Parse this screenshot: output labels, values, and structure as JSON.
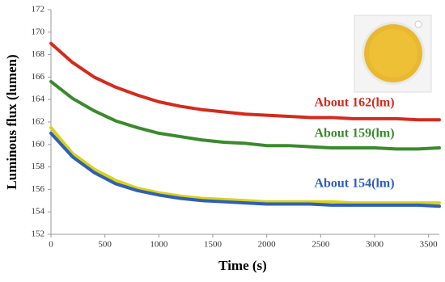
{
  "chart_data": {
    "type": "line",
    "x_label": "Time (s)",
    "y_label": "Luminous flux (lumen)",
    "x": [
      0,
      200,
      400,
      600,
      800,
      1000,
      1200,
      1400,
      1600,
      1800,
      2000,
      2200,
      2400,
      2600,
      2800,
      3000,
      3200,
      3400,
      3600
    ],
    "series": [
      {
        "color": "#d42a1e",
        "values": [
          169.0,
          167.3,
          166.0,
          165.1,
          164.4,
          163.8,
          163.4,
          163.1,
          162.9,
          162.7,
          162.6,
          162.5,
          162.4,
          162.4,
          162.3,
          162.3,
          162.3,
          162.2,
          162.2
        ]
      },
      {
        "color": "#3a8a2c",
        "values": [
          165.6,
          164.1,
          163.0,
          162.1,
          161.5,
          161.0,
          160.7,
          160.4,
          160.2,
          160.1,
          159.9,
          159.9,
          159.8,
          159.7,
          159.7,
          159.7,
          159.6,
          159.6,
          159.7
        ]
      },
      {
        "color": "#d8d21a",
        "values": [
          161.5,
          159.2,
          157.8,
          156.8,
          156.1,
          155.7,
          155.4,
          155.2,
          155.1,
          155.0,
          154.9,
          154.9,
          154.9,
          154.9,
          154.8,
          154.8,
          154.8,
          154.8,
          154.8
        ]
      },
      {
        "color": "#2f5fb8",
        "values": [
          161.0,
          158.9,
          157.5,
          156.5,
          155.9,
          155.5,
          155.2,
          155.0,
          154.9,
          154.8,
          154.7,
          154.7,
          154.7,
          154.6,
          154.6,
          154.6,
          154.6,
          154.6,
          154.5
        ]
      }
    ],
    "annotations": [
      {
        "text": "About 162(lm)",
        "color": "#d42a1e"
      },
      {
        "text": "About 159(lm)",
        "color": "#3a8a2c"
      },
      {
        "text": "About 154(lm)",
        "color": "#2f5fb8"
      }
    ],
    "xlim": [
      0,
      3600
    ],
    "xticks": [
      0,
      500,
      1000,
      1500,
      2000,
      2500,
      3000,
      3500
    ],
    "ylim": [
      152,
      172
    ],
    "yticks": [
      152,
      154,
      156,
      158,
      160,
      162,
      164,
      166,
      168,
      170,
      172
    ],
    "grid": false
  }
}
